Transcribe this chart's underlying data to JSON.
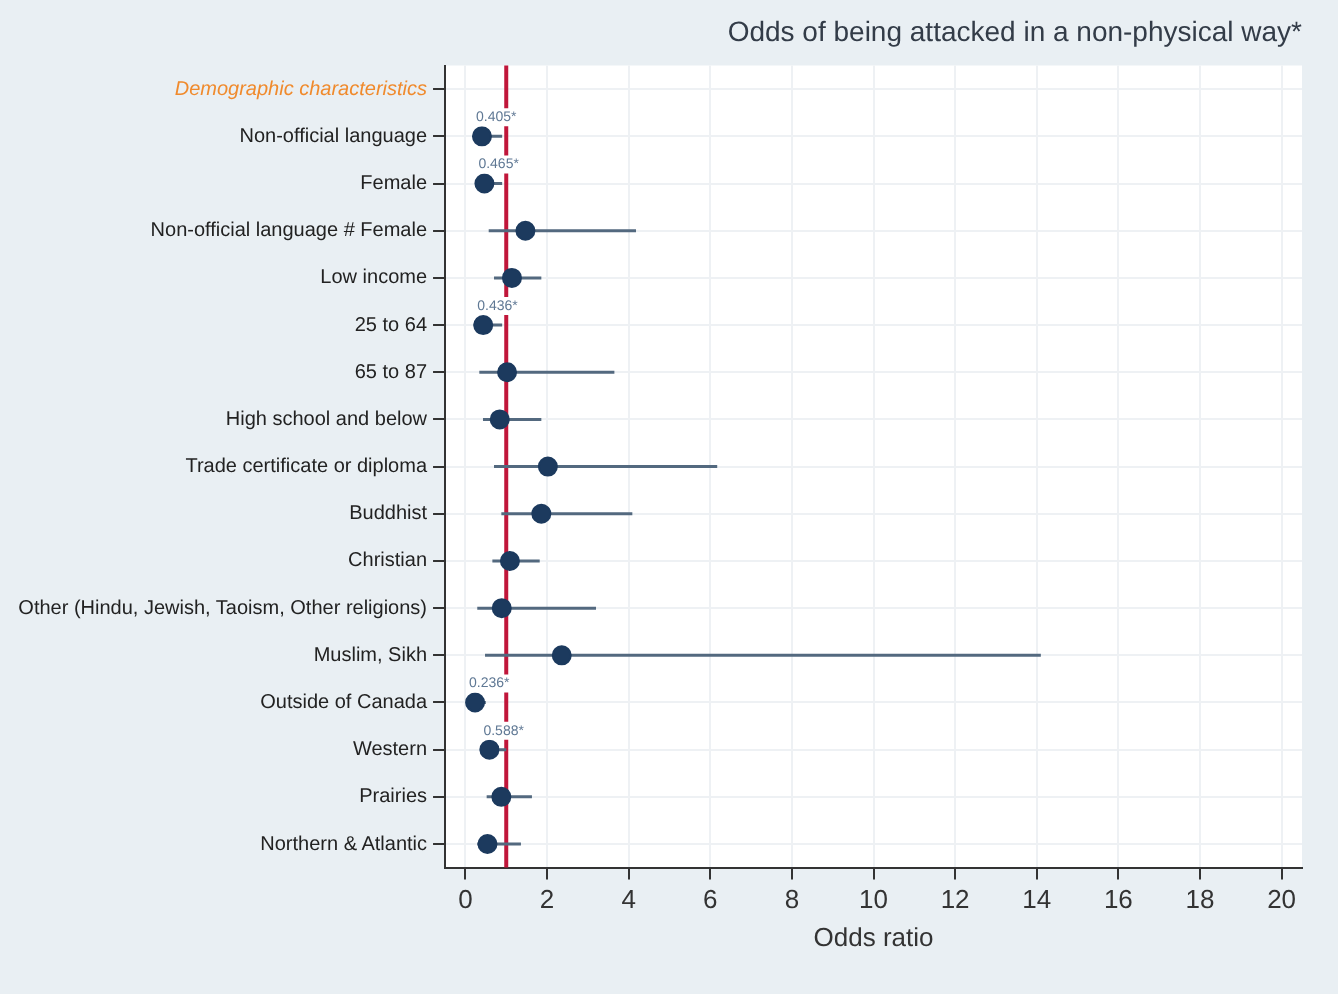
{
  "chart_data": {
    "type": "scatter",
    "title": "Odds of being attacked in a non-physical way*",
    "xlabel": "Odds ratio",
    "categories": [
      "Demographic characteristics",
      "Non-official language",
      "Female",
      "Non-official language # Female",
      "Low income",
      "25 to 64",
      "65 to 87",
      "High school and below",
      "Trade certificate or diploma",
      "Buddhist",
      "Christian",
      "Other (Hindu, Jewish, Taoism, Other religions)",
      "Muslim, Sikh",
      "Outside of Canada",
      "Western",
      "Prairies",
      "Northern & Atlantic"
    ],
    "values": [
      null,
      0.405,
      0.465,
      1.47,
      1.14,
      0.436,
      1.02,
      0.84,
      2.02,
      1.86,
      1.09,
      0.89,
      2.36,
      0.236,
      0.588,
      0.88,
      0.54
    ],
    "errors": [
      null,
      [
        0.2,
        0.9
      ],
      [
        0.25,
        0.9
      ],
      [
        0.57,
        4.18
      ],
      [
        0.7,
        1.86
      ],
      [
        0.2,
        0.9
      ],
      [
        0.34,
        3.65
      ],
      [
        0.43,
        1.86
      ],
      [
        0.7,
        6.17
      ],
      [
        0.88,
        4.09
      ],
      [
        0.66,
        1.82
      ],
      [
        0.29,
        3.2
      ],
      [
        0.48,
        14.1
      ],
      [
        0.1,
        0.5
      ],
      [
        0.35,
        1.0
      ],
      [
        0.52,
        1.63
      ],
      [
        0.29,
        1.36
      ]
    ],
    "value_labels": [
      null,
      "0.405*",
      "0.465*",
      null,
      null,
      "0.436*",
      null,
      null,
      null,
      null,
      null,
      null,
      null,
      "0.236*",
      "0.588*",
      null,
      null
    ],
    "color": "#1c3a5e",
    "xlim": [
      -0.5,
      20.5
    ],
    "xticks": [
      0,
      2,
      4,
      6,
      8,
      10,
      12,
      14,
      16,
      18,
      20
    ],
    "ref_lines": [
      {
        "axis": "x",
        "value": 1,
        "color": "#c0163a"
      }
    ],
    "orientation": "horizontal",
    "grid": true,
    "legend": false,
    "marker": "circle"
  }
}
